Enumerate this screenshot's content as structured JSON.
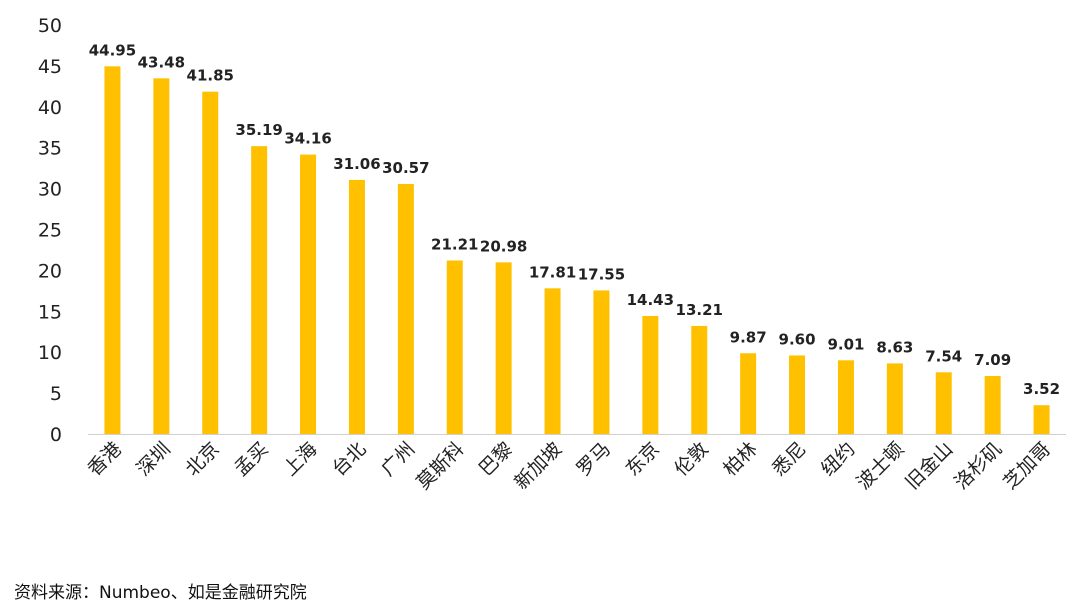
{
  "chart_data": {
    "type": "bar",
    "categories": [
      "香港",
      "深圳",
      "北京",
      "孟买",
      "上海",
      "台北",
      "广州",
      "莫斯科",
      "巴黎",
      "新加坡",
      "罗马",
      "东京",
      "伦敦",
      "柏林",
      "悉尼",
      "纽约",
      "波士顿",
      "旧金山",
      "洛杉矶",
      "芝加哥"
    ],
    "values": [
      44.95,
      43.48,
      41.85,
      35.19,
      34.16,
      31.06,
      30.57,
      21.21,
      20.98,
      17.81,
      17.55,
      14.43,
      13.21,
      9.87,
      9.6,
      9.01,
      8.63,
      7.54,
      7.09,
      3.52
    ],
    "value_labels": [
      "44.95",
      "43.48",
      "41.85",
      "35.19",
      "34.16",
      "31.06",
      "30.57",
      "21.21",
      "20.98",
      "17.81",
      "17.55",
      "14.43",
      "13.21",
      "9.87",
      "9.60",
      "9.01",
      "8.63",
      "7.54",
      "7.09",
      "3.52"
    ],
    "y_ticks": [
      "0",
      "5",
      "10",
      "15",
      "20",
      "25",
      "30",
      "35",
      "40",
      "45",
      "50"
    ],
    "ylim": [
      0,
      50
    ],
    "grid": false,
    "legend": "none",
    "bar_color": "#FFC000"
  },
  "footer": {
    "source": "资料来源：Numbeo、如是金融研究院"
  }
}
